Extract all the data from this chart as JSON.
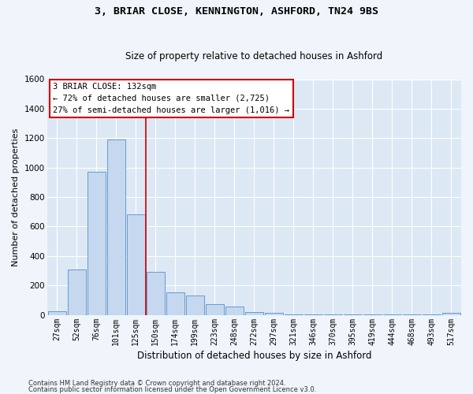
{
  "title1": "3, BRIAR CLOSE, KENNINGTON, ASHFORD, TN24 9BS",
  "title2": "Size of property relative to detached houses in Ashford",
  "xlabel": "Distribution of detached houses by size in Ashford",
  "ylabel": "Number of detached properties",
  "bar_color": "#c5d8f0",
  "bar_edge_color": "#6699cc",
  "bg_color": "#dde8f5",
  "grid_color": "#ffffff",
  "categories": [
    "27sqm",
    "52sqm",
    "76sqm",
    "101sqm",
    "125sqm",
    "150sqm",
    "174sqm",
    "199sqm",
    "223sqm",
    "248sqm",
    "272sqm",
    "297sqm",
    "321sqm",
    "346sqm",
    "370sqm",
    "395sqm",
    "419sqm",
    "444sqm",
    "468sqm",
    "493sqm",
    "517sqm"
  ],
  "values": [
    25,
    310,
    970,
    1190,
    680,
    290,
    150,
    130,
    75,
    55,
    20,
    15,
    5,
    5,
    5,
    5,
    5,
    5,
    5,
    5,
    15
  ],
  "vline_x": 4.5,
  "vline_color": "#cc0000",
  "annotation_text": "3 BRIAR CLOSE: 132sqm\n← 72% of detached houses are smaller (2,725)\n27% of semi-detached houses are larger (1,016) →",
  "annotation_box_color": "#ffffff",
  "annotation_box_edge": "#cc0000",
  "ylim": [
    0,
    1600
  ],
  "yticks": [
    0,
    200,
    400,
    600,
    800,
    1000,
    1200,
    1400,
    1600
  ],
  "footer1": "Contains HM Land Registry data © Crown copyright and database right 2024.",
  "footer2": "Contains public sector information licensed under the Open Government Licence v3.0."
}
